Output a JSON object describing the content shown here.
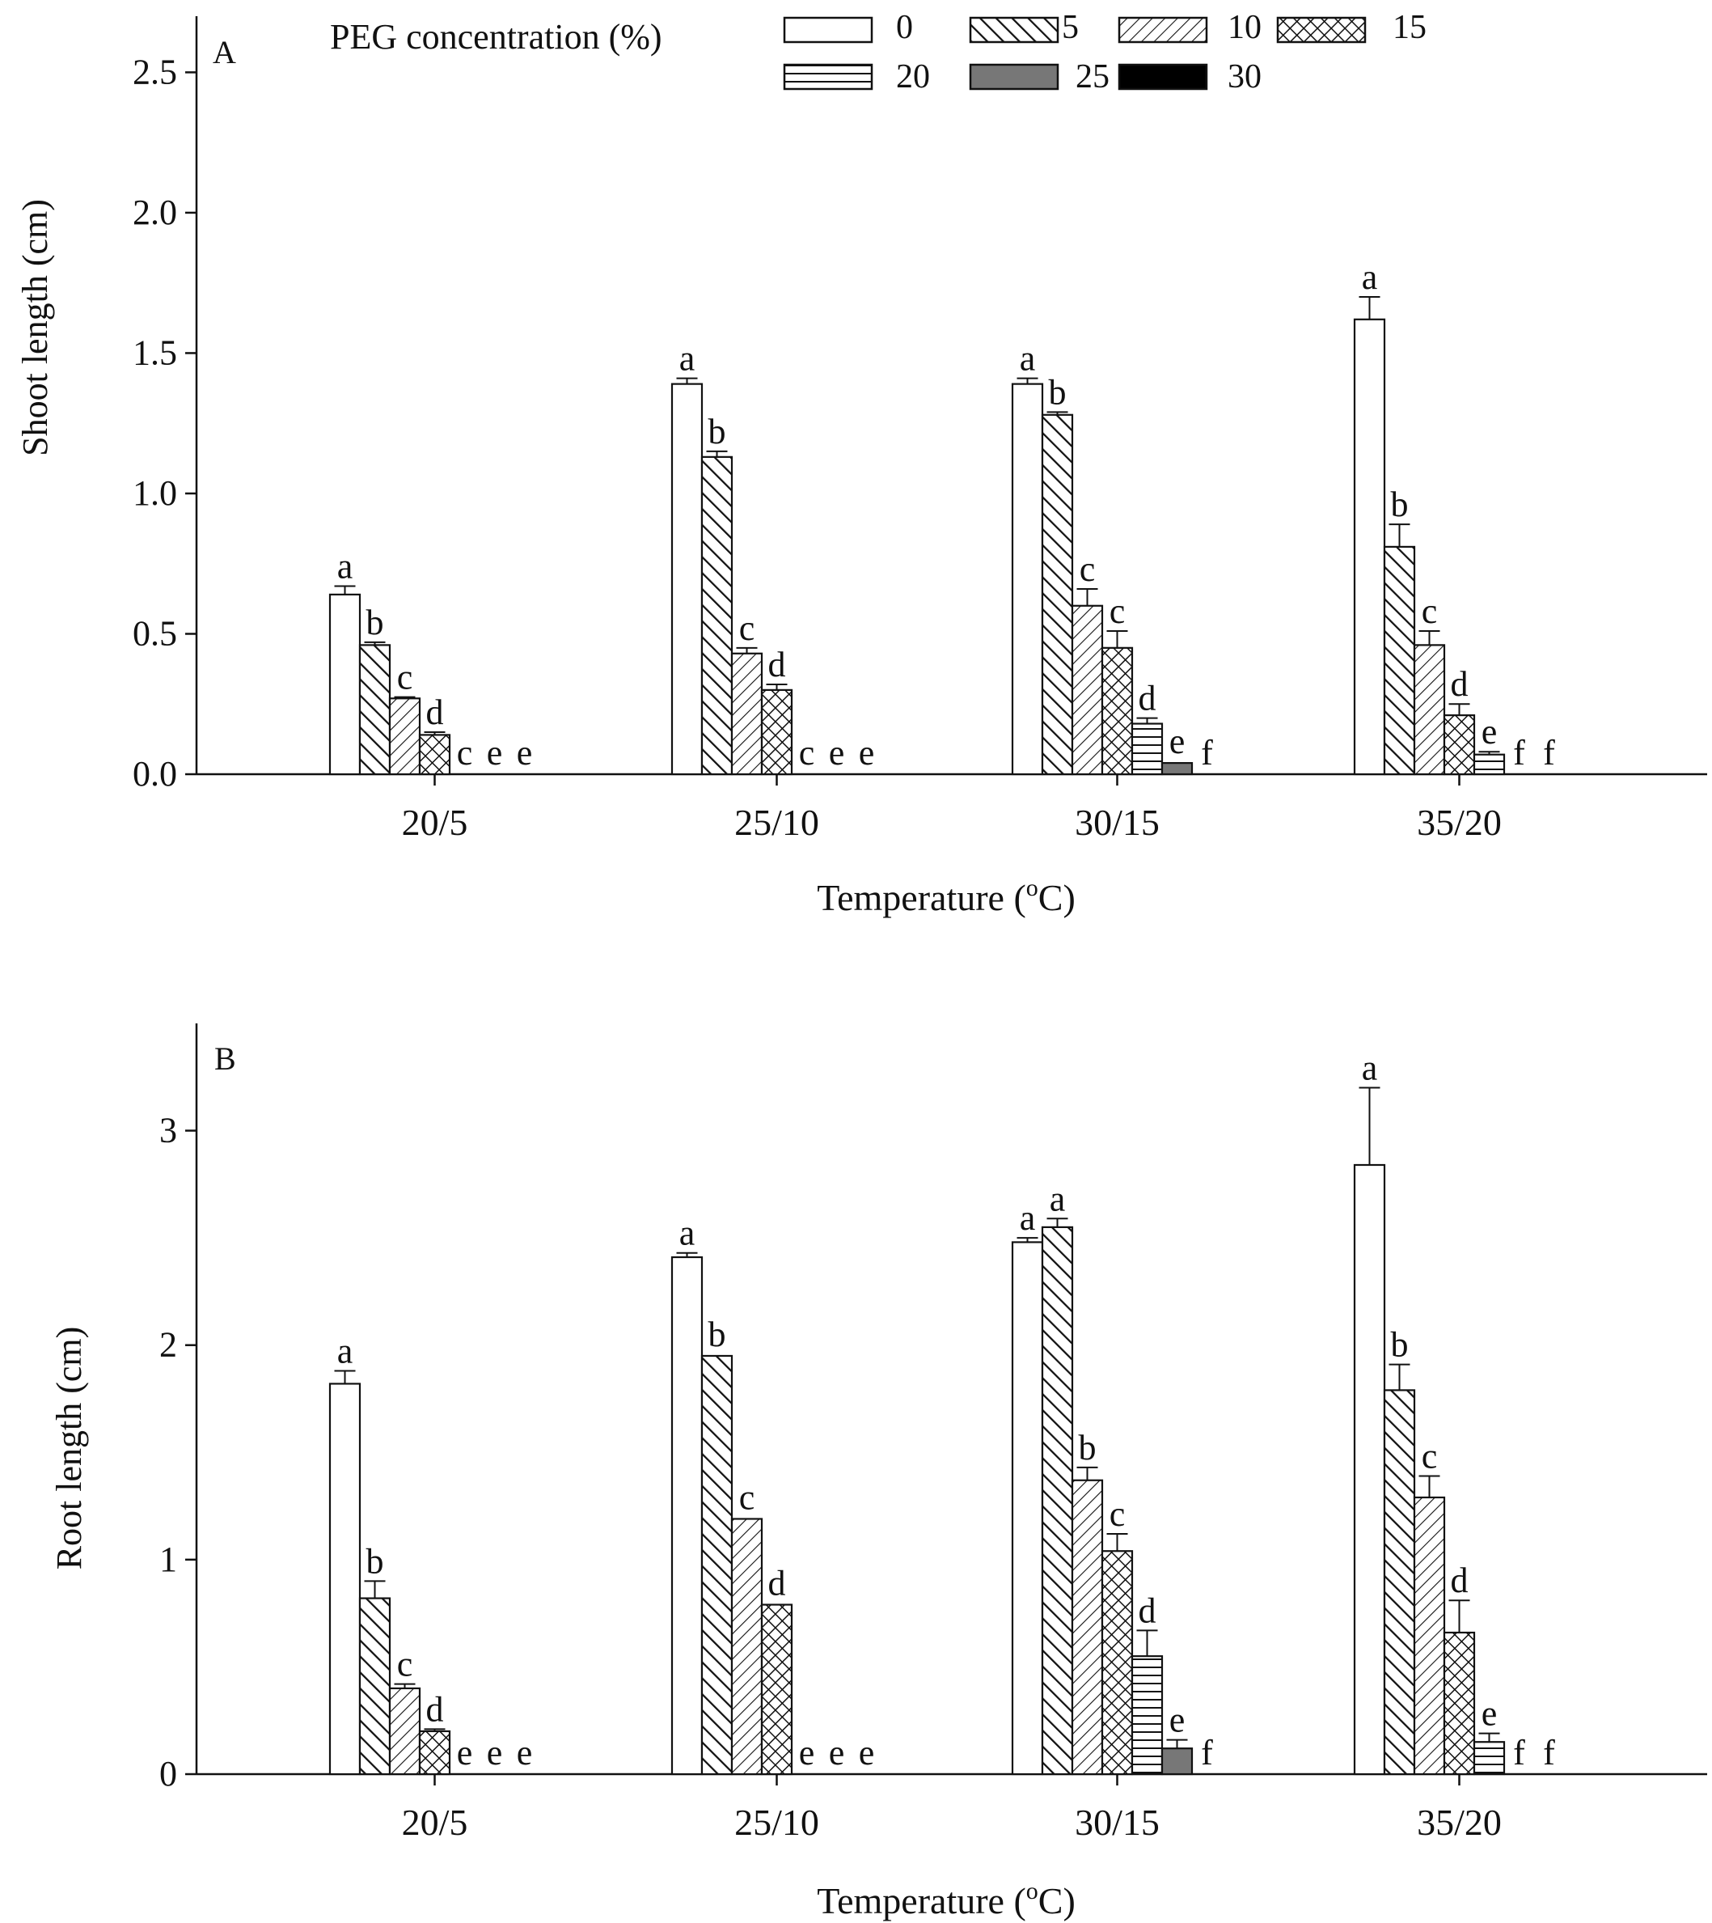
{
  "chart_data": [
    {
      "type": "bar",
      "panel": "A",
      "title": "",
      "xlabel": "Temperature (",
      "xlabel_sup": "o",
      "xlabel_unit": "C)",
      "ylabel": "Shoot length (cm)",
      "ylim": [
        0,
        2.7
      ],
      "yticks": [
        "0.0",
        "0.5",
        "1.0",
        "1.5",
        "2.0",
        "2.5"
      ],
      "ytick_values": [
        0,
        0.5,
        1.0,
        1.5,
        2.0,
        2.5
      ],
      "categories": [
        "20/5",
        "25/10",
        "30/15",
        "35/20"
      ],
      "legend": {
        "title": "PEG concentration (%)",
        "placement": "top"
      },
      "series": [
        {
          "name": "0",
          "values": [
            0.64,
            1.39,
            1.39,
            1.62
          ],
          "errors": [
            0.03,
            0.02,
            0.02,
            0.08
          ],
          "letters": [
            "a",
            "a",
            "a",
            "a"
          ]
        },
        {
          "name": "5",
          "values": [
            0.46,
            1.13,
            1.28,
            0.81
          ],
          "errors": [
            0.01,
            0.02,
            0.01,
            0.08
          ],
          "letters": [
            "b",
            "b",
            "b",
            "b"
          ]
        },
        {
          "name": "10",
          "values": [
            0.27,
            0.43,
            0.6,
            0.46
          ],
          "errors": [
            0.005,
            0.02,
            0.06,
            0.05
          ],
          "letters": [
            "c",
            "c",
            "c",
            "c"
          ]
        },
        {
          "name": "15",
          "values": [
            0.14,
            0.3,
            0.45,
            0.21
          ],
          "errors": [
            0.01,
            0.02,
            0.06,
            0.04
          ],
          "letters": [
            "d",
            "d",
            "c",
            "d"
          ]
        },
        {
          "name": "20",
          "values": [
            0,
            0,
            0.18,
            0.07
          ],
          "errors": [
            0,
            0,
            0.02,
            0.01
          ],
          "letters": [
            "c",
            "c",
            "d",
            "e"
          ]
        },
        {
          "name": "25",
          "values": [
            0,
            0,
            0.04,
            0
          ],
          "errors": [
            0,
            0,
            0,
            0
          ],
          "letters": [
            "e",
            "e",
            "e",
            "f"
          ]
        },
        {
          "name": "30",
          "values": [
            0,
            0,
            0,
            0
          ],
          "errors": [
            0,
            0,
            0,
            0
          ],
          "letters": [
            "e",
            "e",
            "f",
            "f"
          ]
        }
      ],
      "extra_letters": [
        {
          "category": "30/15",
          "letter": "f"
        }
      ]
    },
    {
      "type": "bar",
      "panel": "B",
      "title": "",
      "xlabel": "Temperature (",
      "xlabel_sup": "o",
      "xlabel_unit": "C)",
      "ylabel": "Root length (cm)",
      "ylim": [
        0,
        3.5
      ],
      "yticks": [
        "0",
        "1",
        "2",
        "3"
      ],
      "ytick_values": [
        0,
        1,
        2,
        3
      ],
      "categories": [
        "20/5",
        "25/10",
        "30/15",
        "35/20"
      ],
      "series": [
        {
          "name": "0",
          "values": [
            1.82,
            2.41,
            2.48,
            2.84
          ],
          "errors": [
            0.06,
            0.02,
            0.02,
            0.36
          ],
          "letters": [
            "a",
            "a",
            "a",
            "a"
          ]
        },
        {
          "name": "5",
          "values": [
            0.82,
            1.95,
            2.55,
            1.79
          ],
          "errors": [
            0.08,
            0,
            0.04,
            0.12
          ],
          "letters": [
            "b",
            "b",
            "a",
            "b"
          ]
        },
        {
          "name": "10",
          "values": [
            0.4,
            1.19,
            1.37,
            1.29
          ],
          "errors": [
            0.02,
            0,
            0.06,
            0.1
          ],
          "letters": [
            "c",
            "c",
            "b",
            "c"
          ]
        },
        {
          "name": "15",
          "values": [
            0.2,
            0.79,
            1.04,
            0.66
          ],
          "errors": [
            0.01,
            0,
            0.08,
            0.15
          ],
          "letters": [
            "d",
            "d",
            "c",
            "d"
          ]
        },
        {
          "name": "20",
          "values": [
            0,
            0,
            0.55,
            0.15
          ],
          "errors": [
            0,
            0,
            0.12,
            0.04
          ],
          "letters": [
            "e",
            "e",
            "d",
            "e"
          ]
        },
        {
          "name": "25",
          "values": [
            0,
            0,
            0.12,
            0
          ],
          "errors": [
            0,
            0,
            0.04,
            0
          ],
          "letters": [
            "e",
            "e",
            "e",
            "f"
          ]
        },
        {
          "name": "30",
          "values": [
            0,
            0,
            0,
            0
          ],
          "errors": [
            0,
            0,
            0,
            0
          ],
          "letters": [
            "e",
            "e",
            "f",
            "f"
          ]
        }
      ],
      "extra_letters": [
        {
          "category": "30/15",
          "letter": "f"
        }
      ]
    }
  ]
}
